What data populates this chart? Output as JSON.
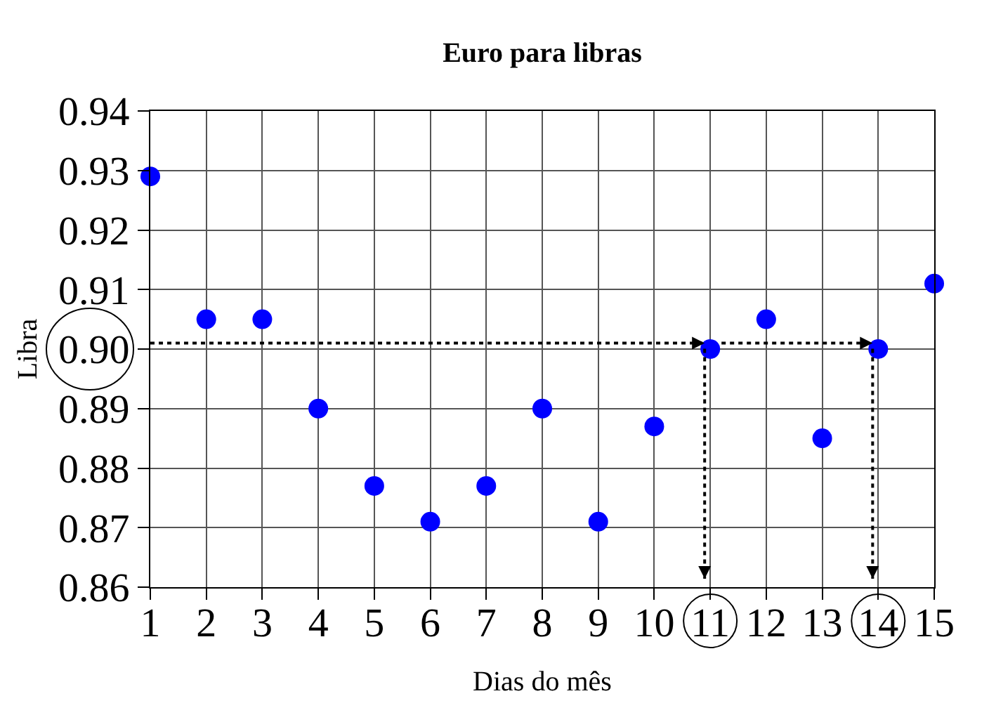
{
  "chart_data": {
    "type": "scatter",
    "title": "Euro para libras",
    "xlabel": "Dias do mês",
    "ylabel": "Libra",
    "x": [
      1,
      2,
      3,
      4,
      5,
      6,
      7,
      8,
      9,
      10,
      11,
      12,
      13,
      14,
      15
    ],
    "series": [
      {
        "color": "#0000ff",
        "marker": "circle",
        "values": [
          0.929,
          0.905,
          0.905,
          0.89,
          0.877,
          0.871,
          0.877,
          0.89,
          0.871,
          0.887,
          0.9,
          0.905,
          0.885,
          0.9,
          0.911
        ]
      }
    ],
    "ref_lines": [
      {
        "axis": "y",
        "value": 0.901,
        "color": "#000000",
        "line_style": "dotted"
      },
      {
        "axis": "x",
        "value": 10.9,
        "color": "#000000",
        "line_style": "dotted"
      },
      {
        "axis": "x",
        "value": 13.9,
        "color": "#000000",
        "line_style": "dotted"
      }
    ],
    "xlim": [
      1,
      15
    ],
    "xticks": [
      1,
      2,
      3,
      4,
      5,
      6,
      7,
      8,
      9,
      10,
      11,
      12,
      13,
      14,
      15
    ],
    "ylim": [
      0.86,
      0.94
    ],
    "yticks": [
      0.86,
      0.87,
      0.88,
      0.89,
      {
        "value": 0.9,
        "label": "0.90"
      },
      0.91,
      0.92,
      0.93,
      0.94
    ],
    "grid": true
  }
}
